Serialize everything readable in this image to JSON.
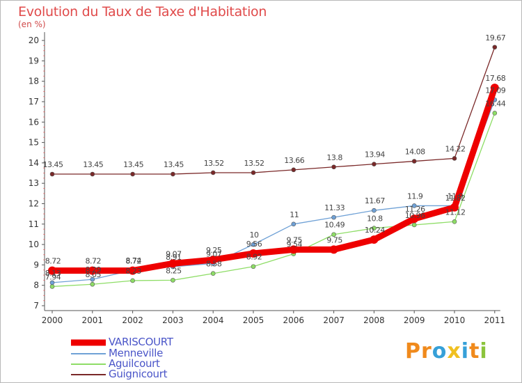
{
  "page": {
    "title": "Evolution du Taux de Taxe d'Habitation",
    "unit": "(en %)"
  },
  "brand": {
    "letters": [
      "P",
      "r",
      "o",
      "x",
      "i",
      "t",
      "i"
    ],
    "colors": [
      "#f08a1c",
      "#f08a1c",
      "#36a0d8",
      "#f0c020",
      "#36a0d8",
      "#f08a1c",
      "#8cc43c"
    ]
  },
  "chart_data": {
    "type": "line",
    "x": [
      2000,
      2001,
      2002,
      2003,
      2004,
      2005,
      2006,
      2007,
      2008,
      2009,
      2010,
      2011
    ],
    "ylim": [
      7,
      20
    ],
    "yticks": [
      7,
      8,
      9,
      10,
      11,
      12,
      13,
      14,
      15,
      16,
      17,
      18,
      19,
      20
    ],
    "grid": false,
    "legend_position": "bottom-left",
    "series": [
      {
        "name": "VARISCOURT",
        "color": "#ee0000",
        "values": [
          8.72,
          8.72,
          8.72,
          9.07,
          9.25,
          9.56,
          9.75,
          9.75,
          10.24,
          11.26,
          11.82,
          17.68
        ],
        "labels": [
          "8.72",
          "8.72",
          "8.72",
          "9.07",
          "9.25",
          "9.56",
          "9.75",
          "9.75",
          "10.24",
          "11.26",
          "11.82",
          "17.68"
        ]
      },
      {
        "name": "Menneville",
        "color": "#6fa1d6",
        "values": [
          8.13,
          8.29,
          8.74,
          8.91,
          9.07,
          10,
          11,
          11.33,
          11.67,
          11.9,
          11.9,
          17.09
        ],
        "labels": [
          "8.13",
          "8.29",
          "8.74",
          "8.91",
          "9.07",
          "10",
          "11",
          "11.33",
          "11.67",
          "11.9",
          "11.9",
          "17.09"
        ]
      },
      {
        "name": "Aguilcourt",
        "color": "#8edd66",
        "values": [
          7.94,
          8.05,
          8.23,
          8.25,
          8.58,
          8.92,
          9.54,
          10.49,
          10.8,
          10.96,
          11.12,
          16.44
        ],
        "labels": [
          "7.94",
          "8.05",
          "8.23",
          "8.25",
          "8.58",
          "8.92",
          "9.54",
          "10.49",
          "10.8",
          "10.96",
          "11.12",
          "16.44"
        ]
      },
      {
        "name": "Guignicourt",
        "color": "#7a2828",
        "values": [
          13.45,
          13.45,
          13.45,
          13.45,
          13.52,
          13.52,
          13.66,
          13.8,
          13.94,
          14.08,
          14.22,
          19.67
        ],
        "labels": [
          "13.45",
          "13.45",
          "13.45",
          "13.45",
          "13.52",
          "13.52",
          "13.66",
          "13.8",
          "13.94",
          "14.08",
          "14.22",
          "19.67"
        ]
      }
    ]
  }
}
